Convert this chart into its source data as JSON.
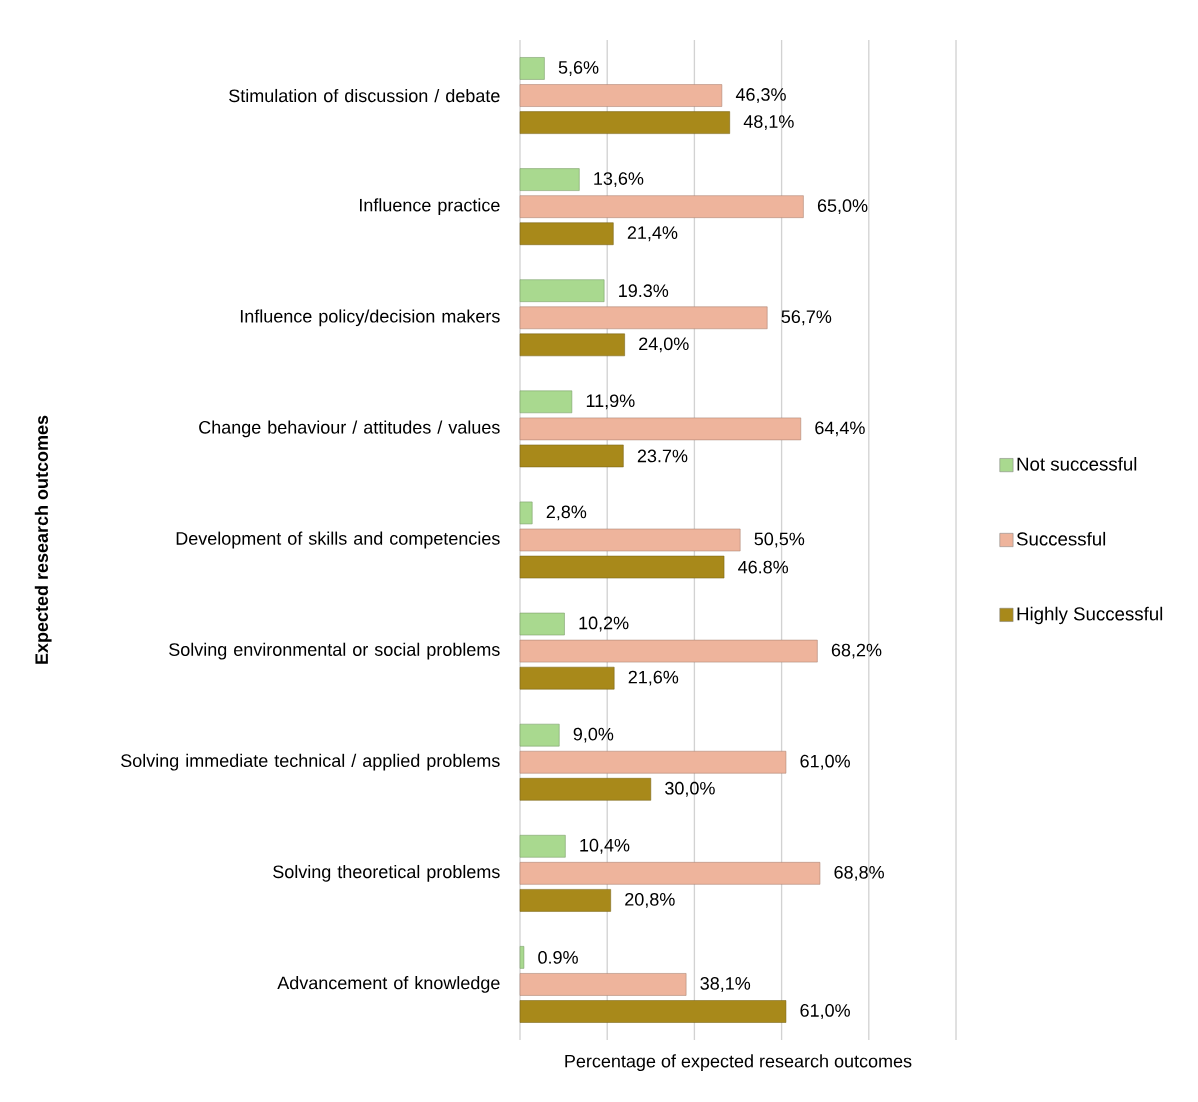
{
  "chart_data": {
    "type": "bar",
    "orientation": "horizontal",
    "xlabel": "Percentage of expected research outcomes",
    "ylabel": "Expected research outcomes",
    "categories": [
      "Stimulation of discussion / debate",
      "Influence practice",
      "Influence policy/decision makers",
      "Change behaviour / attitudes / values",
      "Development of skills and competencies",
      "Solving environmental or social problems",
      "Solving immediate technical / applied problems",
      "Solving theoretical problems",
      "Advancement of knowledge"
    ],
    "series": [
      {
        "name": "Not successful",
        "color": "#a9d98f",
        "values": [
          5.6,
          13.6,
          19.3,
          11.9,
          2.8,
          10.2,
          9.0,
          10.4,
          0.9
        ],
        "value_labels": [
          "5,6%",
          "13,6%",
          "19.3%",
          "11,9%",
          "2,8%",
          "10,2%",
          "9,0%",
          "10,4%",
          "0.9%"
        ]
      },
      {
        "name": "Successful",
        "color": "#eeb49c",
        "values": [
          46.3,
          65.0,
          56.7,
          64.4,
          50.5,
          68.2,
          61.0,
          68.8,
          38.1
        ],
        "value_labels": [
          "46,3%",
          "65,0%",
          "56,7%",
          "64,4%",
          "50,5%",
          "68,2%",
          "61,0%",
          "68,8%",
          "38,1%"
        ]
      },
      {
        "name": "Highly Successful",
        "color": "#a8891a",
        "values": [
          48.1,
          21.4,
          24.0,
          23.7,
          46.8,
          21.6,
          30.0,
          20.8,
          61.0
        ],
        "value_labels": [
          "48,1%",
          "21,4%",
          "24,0%",
          "23.7%",
          "46.8%",
          "21,6%",
          "30,0%",
          "20,8%",
          "61,0%"
        ]
      }
    ],
    "xlim": [
      0,
      100
    ],
    "xticks": [
      {
        "value": 0,
        "label": null
      },
      {
        "value": 20,
        "label": null
      },
      {
        "value": 40,
        "label": null
      },
      {
        "value": 60,
        "label": null
      },
      {
        "value": 80,
        "label": null
      },
      {
        "value": 100,
        "label": null
      }
    ],
    "tick_labels": "y",
    "grid": "x",
    "legend": "right"
  }
}
